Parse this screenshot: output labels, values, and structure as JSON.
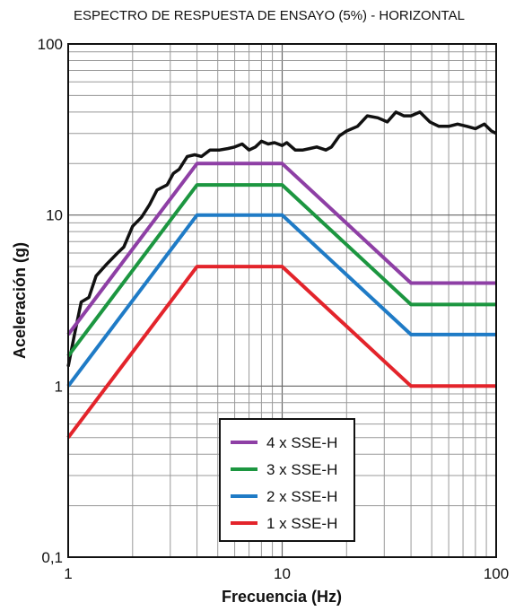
{
  "chart_data": {
    "type": "line",
    "title": "ESPECTRO DE RESPUESTA DE ENSAYO (5%) - HORIZONTAL",
    "xlabel": "Frecuencia (Hz)",
    "ylabel": "Aceleración (g)",
    "xscale": "log",
    "yscale": "log",
    "xlim": [
      1,
      100
    ],
    "ylim": [
      0.1,
      100
    ],
    "x_ticks": [
      "1",
      "10",
      "100"
    ],
    "y_ticks": [
      "0,1",
      "1",
      "10",
      "100"
    ],
    "grid": true,
    "legend_position": "bottom-center",
    "series": [
      {
        "name": "",
        "color": "#111111",
        "points": [
          [
            1,
            1.3
          ],
          [
            1.07,
            2
          ],
          [
            1.15,
            3.1
          ],
          [
            1.25,
            3.3
          ],
          [
            1.35,
            4.4
          ],
          [
            1.5,
            5.1
          ],
          [
            1.7,
            6
          ],
          [
            1.82,
            6.5
          ],
          [
            2,
            8.6
          ],
          [
            2.2,
            9.7
          ],
          [
            2.4,
            11.5
          ],
          [
            2.6,
            14
          ],
          [
            2.9,
            15
          ],
          [
            3.1,
            17.5
          ],
          [
            3.3,
            18.5
          ],
          [
            3.6,
            22
          ],
          [
            3.9,
            22.5
          ],
          [
            4.2,
            22
          ],
          [
            4.6,
            24
          ],
          [
            5.1,
            24
          ],
          [
            5.6,
            24.5
          ],
          [
            6,
            25
          ],
          [
            6.5,
            26
          ],
          [
            7,
            24
          ],
          [
            7.5,
            25
          ],
          [
            8,
            27
          ],
          [
            8.6,
            26
          ],
          [
            9.2,
            26.5
          ],
          [
            10,
            25.5
          ],
          [
            10.5,
            26.5
          ],
          [
            11.5,
            24
          ],
          [
            12.5,
            24
          ],
          [
            13.5,
            24.5
          ],
          [
            14.5,
            25
          ],
          [
            16,
            24
          ],
          [
            17,
            25
          ],
          [
            18.5,
            29
          ],
          [
            20,
            31
          ],
          [
            22.5,
            33
          ],
          [
            25,
            38
          ],
          [
            28,
            37
          ],
          [
            31,
            35
          ],
          [
            34,
            40
          ],
          [
            37,
            38
          ],
          [
            40,
            38
          ],
          [
            44,
            40
          ],
          [
            49,
            35
          ],
          [
            54,
            33
          ],
          [
            60,
            33
          ],
          [
            66,
            34
          ],
          [
            73,
            33
          ],
          [
            80,
            32
          ],
          [
            88,
            34
          ],
          [
            95,
            31
          ],
          [
            100,
            30
          ]
        ]
      },
      {
        "name": "4 x SSE-H",
        "color": "#8e3fa5",
        "points": [
          [
            1,
            2
          ],
          [
            4,
            20
          ],
          [
            10,
            20
          ],
          [
            40,
            4
          ],
          [
            100,
            4
          ]
        ]
      },
      {
        "name": "3 x SSE-H",
        "color": "#1c9640",
        "points": [
          [
            1,
            1.5
          ],
          [
            4,
            15
          ],
          [
            10,
            15
          ],
          [
            40,
            3
          ],
          [
            100,
            3
          ]
        ]
      },
      {
        "name": "2 x SSE-H",
        "color": "#1f7bc6",
        "points": [
          [
            1,
            1
          ],
          [
            4,
            10
          ],
          [
            10,
            10
          ],
          [
            40,
            2
          ],
          [
            100,
            2
          ]
        ]
      },
      {
        "name": "1 x SSE-H",
        "color": "#e3242b",
        "points": [
          [
            1,
            0.5
          ],
          [
            4,
            5
          ],
          [
            10,
            5
          ],
          [
            40,
            1
          ],
          [
            100,
            1
          ]
        ]
      }
    ]
  }
}
